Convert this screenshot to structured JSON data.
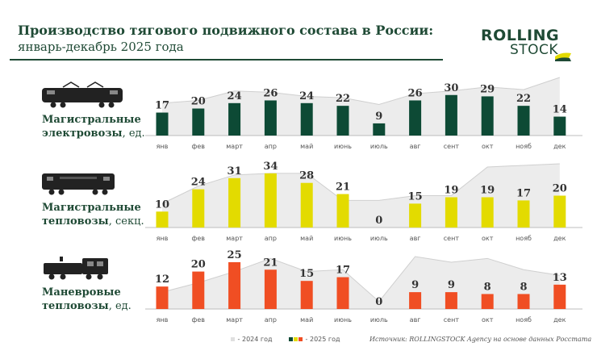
{
  "title": {
    "line1": "Производство тягового подвижного состава в России:",
    "line2": "январь-декабрь 2025 года"
  },
  "logo": {
    "word1": "ROLLING",
    "word2": "STOCK"
  },
  "months": [
    "янв",
    "фев",
    "март",
    "апр",
    "май",
    "июнь",
    "июль",
    "авг",
    "сент",
    "окт",
    "нояб",
    "дек"
  ],
  "colors": {
    "dark_green": "#0d4a35",
    "yellow": "#e3db00",
    "orange": "#f04e23",
    "area_2024": "#ececec",
    "area_line": "#cfcfcf",
    "baseline": "#bdbdbd"
  },
  "legend": {
    "label_2024": "- 2024 год",
    "label_2025": "- 2025 год"
  },
  "source": "Источник: ROLLINGSTOCK Agency на основе данных Росстата",
  "chart_data": [
    {
      "type": "bar",
      "name_bold": "Магистральные",
      "name_line2_bold": "электровозы",
      "name_unit": ", ед.",
      "categories": [
        "янв",
        "фев",
        "март",
        "апр",
        "май",
        "июнь",
        "июль",
        "авг",
        "сент",
        "окт",
        "нояб",
        "дек"
      ],
      "series": [
        {
          "name": "2025 год",
          "values": [
            17,
            20,
            24,
            26,
            24,
            22,
            9,
            26,
            30,
            29,
            22,
            14
          ]
        },
        {
          "name": "2024 год",
          "values": [
            24,
            26,
            33,
            32,
            29,
            28,
            23,
            31,
            33,
            36,
            34,
            43
          ]
        }
      ],
      "ylim": [
        0,
        43
      ]
    },
    {
      "type": "bar",
      "name_bold": "Магистральные",
      "name_line2_bold": "тепловозы",
      "name_unit": ", секц.",
      "categories": [
        "янв",
        "фев",
        "март",
        "апр",
        "май",
        "июнь",
        "июль",
        "авг",
        "сент",
        "окт",
        "нояб",
        "дек"
      ],
      "series": [
        {
          "name": "2025 год",
          "values": [
            10,
            24,
            31,
            34,
            28,
            21,
            0,
            15,
            19,
            19,
            17,
            20
          ]
        },
        {
          "name": "2024 год",
          "values": [
            15,
            26,
            33,
            34,
            34,
            17,
            17,
            20,
            20,
            38,
            39,
            40
          ]
        }
      ],
      "ylim": [
        0,
        40
      ]
    },
    {
      "type": "bar",
      "name_bold": "Маневровые",
      "name_line2_bold": "тепловозы",
      "name_unit": ", ед.",
      "categories": [
        "янв",
        "фев",
        "март",
        "апр",
        "май",
        "июнь",
        "июль",
        "авг",
        "сент",
        "окт",
        "нояб",
        "дек"
      ],
      "series": [
        {
          "name": "2025 год",
          "values": [
            12,
            20,
            25,
            21,
            15,
            17,
            0,
            9,
            9,
            8,
            8,
            13
          ]
        },
        {
          "name": "2024 год",
          "values": [
            9,
            14,
            20,
            27,
            20,
            21,
            4,
            28,
            25,
            27,
            21,
            18
          ]
        }
      ],
      "ylim": [
        0,
        28
      ]
    }
  ]
}
